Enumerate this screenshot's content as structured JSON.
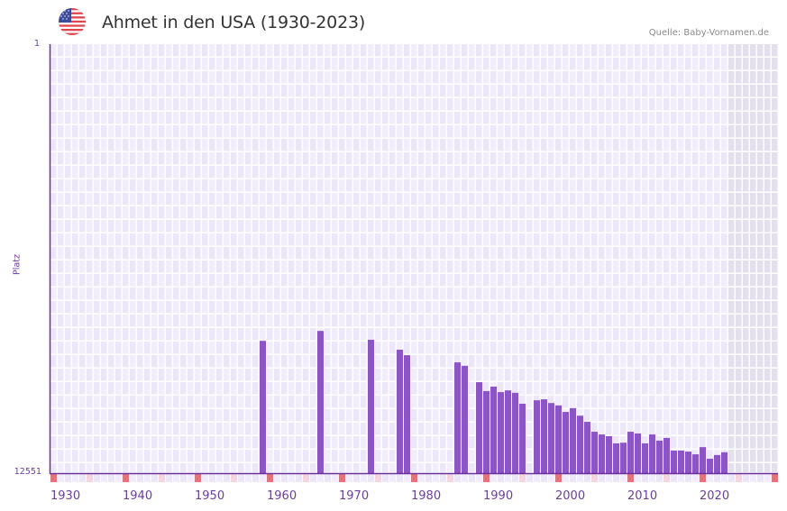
{
  "header": {
    "title": "Ahmet in den USA (1930-2023)",
    "source": "Quelle: Baby-Vornamen.de",
    "flag_icon": "usa-flag-icon"
  },
  "colors": {
    "bar": "#8b55c6",
    "axis": "#6a2f99",
    "grid_bg_a": "#f1edfb",
    "grid_bg_b": "#ece7f8",
    "future_bg": "#e3dfec",
    "decade_marker": "#e37479",
    "half_decade_marker": "#f3d6df",
    "tick_text": "#6a3fa0"
  },
  "chart_data": {
    "type": "bar",
    "title": "Ahmet in den USA (1930-2023)",
    "xlabel": "",
    "ylabel": "Platz",
    "y_inverted": true,
    "ylim": [
      1,
      12551
    ],
    "xlim": [
      1929,
      2029
    ],
    "y_ticks": [
      "1",
      "12551"
    ],
    "x_ticks": [
      "1930",
      "1940",
      "1950",
      "1960",
      "1970",
      "1980",
      "1990",
      "2000",
      "2010",
      "2020"
    ],
    "grid": true,
    "legend": null,
    "x": [
      1958,
      1966,
      1973,
      1977,
      1978,
      1985,
      1986,
      1988,
      1989,
      1990,
      1991,
      1992,
      1993,
      1994,
      1996,
      1997,
      1998,
      1999,
      2000,
      2001,
      2002,
      2003,
      2004,
      2005,
      2006,
      2007,
      2008,
      2009,
      2010,
      2011,
      2012,
      2013,
      2014,
      2015,
      2016,
      2017,
      2018,
      2019,
      2020,
      2021,
      2022
    ],
    "values": [
      8680,
      8390,
      8650,
      8940,
      9100,
      9310,
      9410,
      9890,
      10150,
      10020,
      10180,
      10130,
      10200,
      10520,
      10420,
      10390,
      10500,
      10570,
      10760,
      10650,
      10870,
      11050,
      11340,
      11420,
      11470,
      11680,
      11660,
      11340,
      11390,
      11680,
      11420,
      11600,
      11520,
      11890,
      11890,
      11920,
      12000,
      11790,
      12130,
      12020,
      11940
    ]
  }
}
